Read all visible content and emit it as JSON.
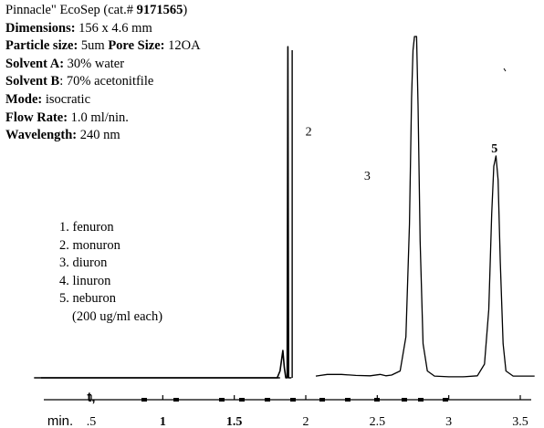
{
  "method_info": {
    "column_prefix": "Pinnacle\" EcoSep (cat.# ",
    "column_catalog": "9171565",
    "column_suffix": ")",
    "dimensions_label": "Dimensions:",
    "dimensions_value": " 156 x 4.6 mm",
    "particle_label": "Particle size:",
    "particle_value": " 5um ",
    "pore_label": "Pore Size:",
    "pore_value": " 12OA",
    "solvent_a_label": "Solvent A:",
    "solvent_a_value": " 30% water",
    "solvent_b_label": "Solvent B",
    "solvent_b_value": ": 70% acetonitfile",
    "mode_label": "Mode:",
    "mode_value": "  isocratic",
    "flow_label": "Flow Rate:",
    "flow_value": "   1.0 ml/nin.",
    "wavelength_label": "Wavelength:",
    "wavelength_value": "  240 nm"
  },
  "compounds": {
    "items": [
      "1. fenuron",
      "2. monuron",
      "3. diuron",
      "4. linuron",
      "5. neburon"
    ],
    "note": "(200 ug/ml each)"
  },
  "chart_data": {
    "type": "line",
    "x_unit_label": "min.",
    "x_axis_fragment": "t,",
    "xlim": [
      0.1,
      3.6
    ],
    "ylim": [
      0,
      100
    ],
    "x_ticks": [
      {
        "value": 0.5,
        "label": ".5",
        "bold": false
      },
      {
        "value": 1.0,
        "label": "1",
        "bold": true
      },
      {
        "value": 1.5,
        "label": "1.5",
        "bold": true
      },
      {
        "value": 2.0,
        "label": "2",
        "bold": false
      },
      {
        "value": 2.5,
        "label": "2.5",
        "bold": false
      },
      {
        "value": 3.0,
        "label": "3",
        "bold": false
      },
      {
        "value": 3.5,
        "label": "3.5",
        "bold": false
      }
    ],
    "peak_labels": [
      {
        "label": "2",
        "x": 2.02,
        "y": 71,
        "bold": false
      },
      {
        "label": "3",
        "x": 2.43,
        "y": 58,
        "bold": false
      },
      {
        "label": "5",
        "x": 3.32,
        "y": 66,
        "bold": true
      }
    ],
    "segments": [
      {
        "name": "void",
        "points": [
          [
            0.1,
            0
          ],
          [
            1.8,
            0
          ],
          [
            1.82,
            2
          ],
          [
            1.84,
            8
          ],
          [
            1.85,
            3
          ],
          [
            1.86,
            0
          ],
          [
            1.87,
            0
          ],
          [
            1.875,
            97
          ],
          [
            1.88,
            0
          ],
          [
            1.9,
            0
          ]
        ]
      },
      {
        "name": "main",
        "points": [
          [
            2.07,
            0.5
          ],
          [
            2.15,
            1
          ],
          [
            2.25,
            1
          ],
          [
            2.35,
            0.7
          ],
          [
            2.45,
            0.6
          ],
          [
            2.52,
            1
          ],
          [
            2.56,
            0.6
          ],
          [
            2.6,
            0.8
          ],
          [
            2.66,
            2
          ],
          [
            2.7,
            12
          ],
          [
            2.725,
            45
          ],
          [
            2.74,
            82
          ],
          [
            2.75,
            96
          ],
          [
            2.76,
            100
          ],
          [
            2.775,
            100
          ],
          [
            2.785,
            80
          ],
          [
            2.8,
            40
          ],
          [
            2.82,
            10
          ],
          [
            2.85,
            2
          ],
          [
            2.9,
            0.5
          ],
          [
            3.0,
            0.3
          ],
          [
            3.1,
            0.3
          ],
          [
            3.2,
            0.6
          ],
          [
            3.25,
            4
          ],
          [
            3.28,
            20
          ],
          [
            3.3,
            48
          ],
          [
            3.315,
            62
          ],
          [
            3.33,
            65
          ],
          [
            3.345,
            58
          ],
          [
            3.36,
            34
          ],
          [
            3.38,
            10
          ],
          [
            3.4,
            2
          ],
          [
            3.45,
            0.5
          ],
          [
            3.6,
            0.5
          ]
        ]
      }
    ]
  }
}
